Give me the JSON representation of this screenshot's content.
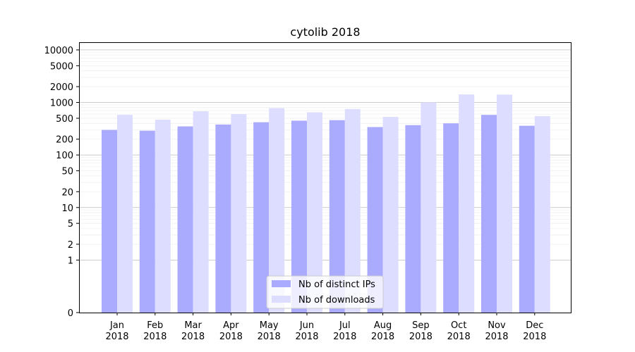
{
  "chart_data": {
    "type": "bar",
    "title": "cytolib 2018",
    "xlabel": "",
    "ylabel": "",
    "yscale": "symlog",
    "ylim": [
      0,
      14000
    ],
    "yticks": [
      0,
      1,
      2,
      5,
      10,
      20,
      50,
      100,
      200,
      500,
      1000,
      2000,
      5000,
      10000
    ],
    "ytick_labels": [
      "0",
      "1",
      "2",
      "5",
      "10",
      "20",
      "50",
      "100",
      "200",
      "500",
      "1000",
      "2000",
      "5000",
      "10000"
    ],
    "grid": true,
    "legend_position": "bottom-center",
    "categories": [
      "Jan 2018",
      "Feb 2018",
      "Mar 2018",
      "Apr 2018",
      "May 2018",
      "Jun 2018",
      "Jul 2018",
      "Aug 2018",
      "Sep 2018",
      "Oct 2018",
      "Nov 2018",
      "Dec 2018"
    ],
    "category_lines": [
      [
        "Jan",
        "2018"
      ],
      [
        "Feb",
        "2018"
      ],
      [
        "Mar",
        "2018"
      ],
      [
        "Apr",
        "2018"
      ],
      [
        "May",
        "2018"
      ],
      [
        "Jun",
        "2018"
      ],
      [
        "Jul",
        "2018"
      ],
      [
        "Aug",
        "2018"
      ],
      [
        "Sep",
        "2018"
      ],
      [
        "Oct",
        "2018"
      ],
      [
        "Nov",
        "2018"
      ],
      [
        "Dec",
        "2018"
      ]
    ],
    "series": [
      {
        "name": "Nb of distinct IPs",
        "color": "#aaaaff",
        "values": [
          300,
          290,
          350,
          380,
          420,
          450,
          460,
          340,
          370,
          400,
          580,
          360
        ]
      },
      {
        "name": "Nb of downloads",
        "color": "#ddddff",
        "values": [
          580,
          470,
          680,
          600,
          780,
          650,
          750,
          530,
          1000,
          1420,
          1410,
          550
        ]
      }
    ]
  }
}
